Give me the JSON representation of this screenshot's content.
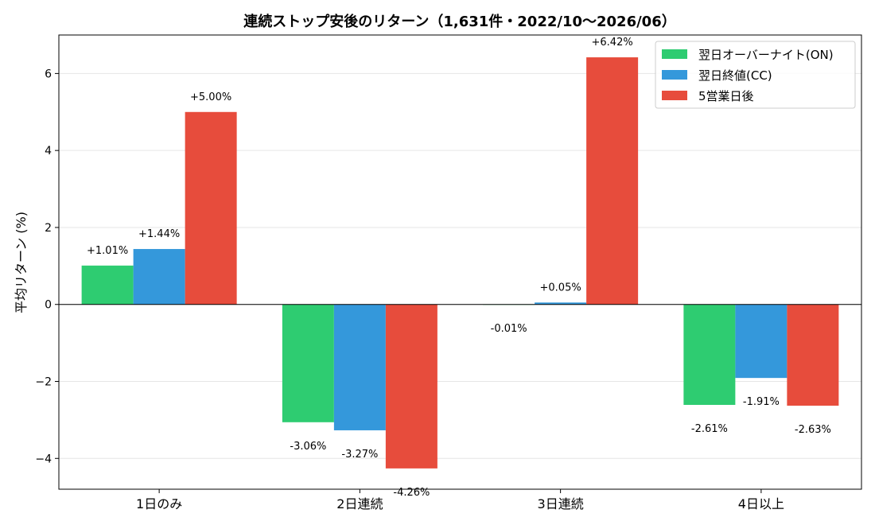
{
  "chart_data": {
    "type": "bar",
    "title": "連続ストップ安後のリターン（1,631件・2022/10〜2026/06）",
    "xlabel": "",
    "ylabel": "平均リターン (%)",
    "ylim": [
      -4.8,
      7.0
    ],
    "yticks": [
      -4,
      -2,
      0,
      2,
      4,
      6
    ],
    "ytick_labels": [
      "−4",
      "−2",
      "0",
      "2",
      "4",
      "6"
    ],
    "grid": true,
    "legend_position": "top-right",
    "categories": [
      "1日のみ",
      "2日連続",
      "3日連続",
      "4日以上"
    ],
    "series": [
      {
        "name": "翌日オーバーナイト(ON)",
        "color": "#2ecc71",
        "values": [
          1.01,
          -3.06,
          -0.01,
          -2.61
        ],
        "labels": [
          "+1.01%",
          "-3.06%",
          "-0.01%",
          "-2.61%"
        ]
      },
      {
        "name": "翌日終値(CC)",
        "color": "#3498db",
        "values": [
          1.44,
          -3.27,
          0.05,
          -1.91
        ],
        "labels": [
          "+1.44%",
          "-3.27%",
          "+0.05%",
          "-1.91%"
        ]
      },
      {
        "name": "5営業日後",
        "color": "#e74c3c",
        "values": [
          5.0,
          -4.26,
          6.42,
          -2.63
        ],
        "labels": [
          "+5.00%",
          "-4.26%",
          "+6.42%",
          "-2.63%"
        ]
      }
    ]
  }
}
